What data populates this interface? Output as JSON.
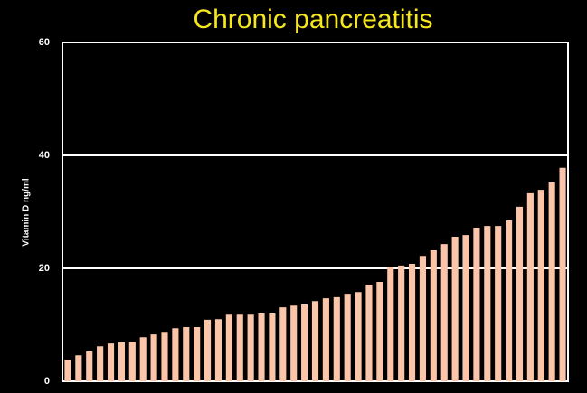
{
  "chart_data": {
    "type": "bar",
    "title": "Chronic pancreatitis",
    "y_label": "Vitamin D ng/ml",
    "categories": [
      null,
      null,
      null,
      null,
      null,
      null,
      null,
      null,
      null,
      null,
      null,
      null,
      null,
      null,
      null,
      null,
      null,
      null,
      null,
      null,
      null,
      null,
      null,
      null,
      null,
      null,
      null,
      null,
      null,
      null,
      null,
      null,
      null,
      null,
      null,
      null,
      null,
      null,
      null,
      null,
      null,
      null,
      null,
      null,
      null,
      null,
      null
    ],
    "values": [
      3.8,
      4.6,
      5.3,
      6.2,
      6.7,
      6.9,
      7.0,
      7.8,
      8.3,
      8.6,
      9.4,
      9.6,
      9.6,
      10.9,
      11.0,
      11.8,
      11.8,
      11.8,
      12.0,
      12.0,
      13.1,
      13.4,
      13.6,
      14.2,
      14.7,
      14.9,
      15.5,
      15.8,
      17.1,
      17.6,
      20.2,
      20.5,
      20.8,
      22.2,
      23.2,
      24.3,
      25.6,
      25.9,
      27.2,
      27.5,
      27.5,
      28.5,
      30.9,
      33.3,
      33.9,
      35.2,
      37.8
    ],
    "color": "#fac5a8",
    "title_color": "#f5e61e",
    "ylim": [
      0,
      60
    ],
    "yticks": [
      0,
      20,
      40,
      60
    ],
    "grid": true
  }
}
